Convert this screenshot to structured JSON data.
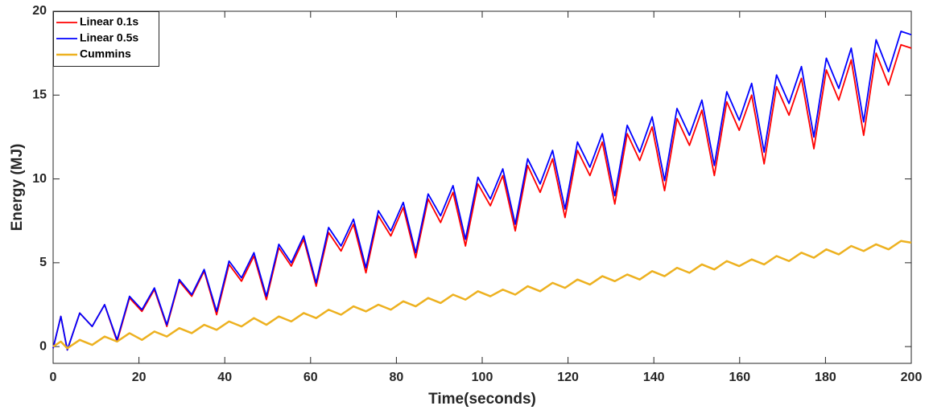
{
  "chart_data": {
    "type": "line",
    "xlabel": "Time(seconds)",
    "ylabel": "Energy (MJ)",
    "xlim": [
      0,
      200
    ],
    "ylim": [
      -1,
      20
    ],
    "xticks": [
      0,
      20,
      40,
      60,
      80,
      100,
      120,
      140,
      160,
      180,
      200
    ],
    "yticks": [
      0,
      5,
      10,
      15,
      20
    ],
    "legend": "upper-left",
    "grid": false,
    "x": [
      0,
      1.8,
      3.3,
      6.2,
      9.1,
      12.0,
      14.9,
      17.8,
      20.7,
      23.6,
      26.5,
      29.4,
      32.3,
      35.2,
      38.1,
      41.0,
      43.9,
      46.8,
      49.7,
      52.6,
      55.5,
      58.4,
      61.3,
      64.2,
      67.1,
      70.0,
      72.9,
      75.8,
      78.7,
      81.6,
      84.5,
      87.4,
      90.3,
      93.2,
      96.1,
      99.0,
      101.9,
      104.8,
      107.7,
      110.6,
      113.5,
      116.4,
      119.3,
      122.2,
      125.1,
      128.0,
      130.9,
      133.8,
      136.7,
      139.6,
      142.5,
      145.4,
      148.3,
      151.2,
      154.1,
      157.0,
      159.9,
      162.8,
      165.7,
      168.6,
      171.5,
      174.4,
      177.3,
      180.2,
      183.1,
      186.0,
      188.9,
      191.8,
      194.7,
      197.6,
      200
    ],
    "series": [
      {
        "name": "Linear 0.1s",
        "color": "#ff0000",
        "values": [
          -0.1,
          1.8,
          -0.2,
          2.0,
          1.2,
          2.5,
          0.3,
          2.9,
          2.1,
          3.4,
          1.2,
          3.9,
          3.0,
          4.5,
          1.9,
          4.9,
          3.9,
          5.4,
          2.8,
          5.9,
          4.8,
          6.4,
          3.6,
          6.8,
          5.7,
          7.3,
          4.4,
          7.8,
          6.6,
          8.3,
          5.3,
          8.8,
          7.4,
          9.2,
          6.0,
          9.7,
          8.4,
          10.2,
          6.9,
          10.8,
          9.2,
          11.2,
          7.7,
          11.7,
          10.2,
          12.2,
          8.5,
          12.7,
          11.1,
          13.1,
          9.3,
          13.6,
          12.0,
          14.1,
          10.2,
          14.6,
          12.9,
          15.0,
          10.9,
          15.5,
          13.8,
          16.0,
          11.8,
          16.5,
          14.7,
          17.1,
          12.6,
          17.5,
          15.6,
          18.0,
          17.8
        ]
      },
      {
        "name": "Linear 0.5s",
        "color": "#0000ff",
        "values": [
          -0.1,
          1.8,
          -0.2,
          2.0,
          1.2,
          2.5,
          0.4,
          3.0,
          2.2,
          3.5,
          1.3,
          4.0,
          3.1,
          4.6,
          2.1,
          5.1,
          4.1,
          5.6,
          3.0,
          6.1,
          5.0,
          6.6,
          3.8,
          7.1,
          6.0,
          7.6,
          4.7,
          8.1,
          6.9,
          8.6,
          5.6,
          9.1,
          7.8,
          9.6,
          6.4,
          10.1,
          8.8,
          10.6,
          7.3,
          11.2,
          9.7,
          11.7,
          8.2,
          12.2,
          10.7,
          12.7,
          9.0,
          13.2,
          11.6,
          13.7,
          9.9,
          14.2,
          12.6,
          14.7,
          10.8,
          15.2,
          13.5,
          15.7,
          11.6,
          16.2,
          14.5,
          16.7,
          12.5,
          17.2,
          15.4,
          17.8,
          13.4,
          18.3,
          16.4,
          18.8,
          18.6
        ]
      },
      {
        "name": "Cummins",
        "color": "#edb120",
        "values": [
          0.0,
          0.3,
          -0.1,
          0.4,
          0.1,
          0.6,
          0.3,
          0.8,
          0.4,
          0.9,
          0.6,
          1.1,
          0.8,
          1.3,
          1.0,
          1.5,
          1.2,
          1.7,
          1.3,
          1.8,
          1.5,
          2.0,
          1.7,
          2.2,
          1.9,
          2.4,
          2.1,
          2.5,
          2.2,
          2.7,
          2.4,
          2.9,
          2.6,
          3.1,
          2.8,
          3.3,
          3.0,
          3.4,
          3.1,
          3.6,
          3.3,
          3.8,
          3.5,
          4.0,
          3.7,
          4.2,
          3.9,
          4.3,
          4.0,
          4.5,
          4.2,
          4.7,
          4.4,
          4.9,
          4.6,
          5.1,
          4.8,
          5.2,
          4.9,
          5.4,
          5.1,
          5.6,
          5.3,
          5.8,
          5.5,
          6.0,
          5.7,
          6.1,
          5.8,
          6.3,
          6.2
        ]
      }
    ]
  }
}
